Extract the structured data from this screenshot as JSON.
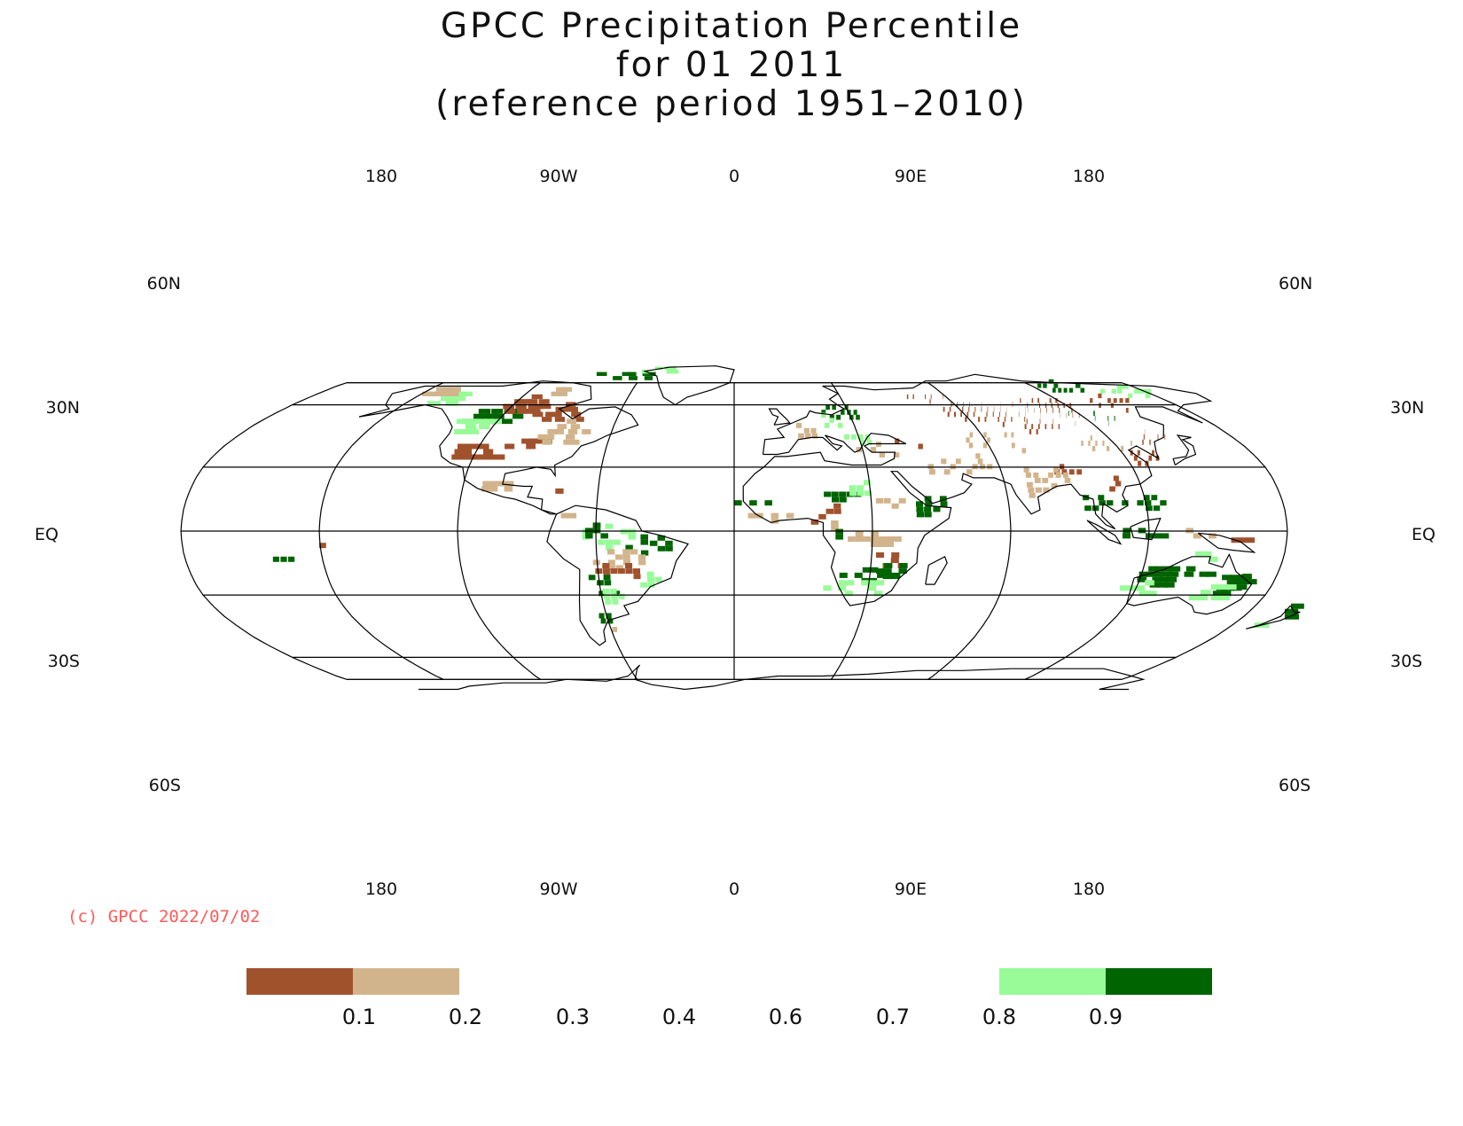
{
  "title": {
    "line1": "GPCC Precipitation Percentile",
    "line2": "for 01 2011",
    "line3": "(reference period 1951–2010)"
  },
  "axes": {
    "top_lon_labels": [
      "180",
      "90W",
      "0",
      "90E",
      "180"
    ],
    "bottom_lon_labels": [
      "180",
      "90W",
      "0",
      "90E",
      "180"
    ],
    "lat_labels": [
      "60N",
      "30N",
      "EQ",
      "30S",
      "60S"
    ]
  },
  "copyright": "(c) GPCC 2022/07/02",
  "legend": {
    "labels": [
      "0.1",
      "0.2",
      "0.3",
      "0.4",
      "0.6",
      "0.7",
      "0.8",
      "0.9"
    ],
    "classes": [
      {
        "range": "< 0.1",
        "color": "#a0522d"
      },
      {
        "range": "0.1 - 0.2",
        "color": "#d2b48c"
      },
      {
        "range": "0.8 - 0.9",
        "color": "#98fb98"
      },
      {
        "range": "> 0.9",
        "color": "#006400"
      }
    ]
  },
  "colors": {
    "very_dry": "#a0522d",
    "dry": "#d2b48c",
    "wet": "#98fb98",
    "very_wet": "#006400",
    "graticule": "#000000",
    "copyright": "#ff5a5a"
  }
}
